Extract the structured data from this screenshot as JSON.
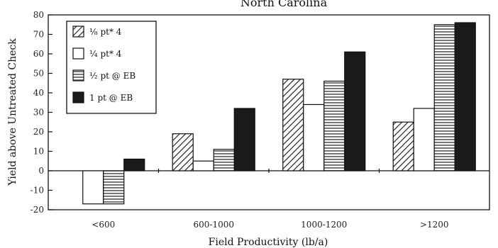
{
  "chart_data": {
    "type": "bar",
    "title": "North Carolina",
    "xlabel": "Field Productivity (lb/a)",
    "ylabel": "Yield above Untreated Check",
    "categories": [
      "<600",
      "600-1000",
      "1000-1200",
      ">1200"
    ],
    "ylim": [
      -20,
      80
    ],
    "yticks": [
      -20,
      -10,
      0,
      10,
      20,
      30,
      40,
      50,
      60,
      70,
      80
    ],
    "grid": false,
    "legend": "top-left",
    "series": [
      {
        "name": "⅛ pt* 4",
        "pattern": "diagonal",
        "values": [
          0,
          19,
          47,
          25
        ]
      },
      {
        "name": "¼ pt* 4",
        "pattern": "white",
        "values": [
          -17,
          5,
          34,
          32
        ]
      },
      {
        "name": "½ pt @ EB",
        "pattern": "horizontal",
        "values": [
          -17,
          11,
          46,
          75
        ]
      },
      {
        "name": "1 pt @ EB",
        "pattern": "solid",
        "values": [
          6,
          32,
          61,
          76
        ]
      }
    ]
  }
}
